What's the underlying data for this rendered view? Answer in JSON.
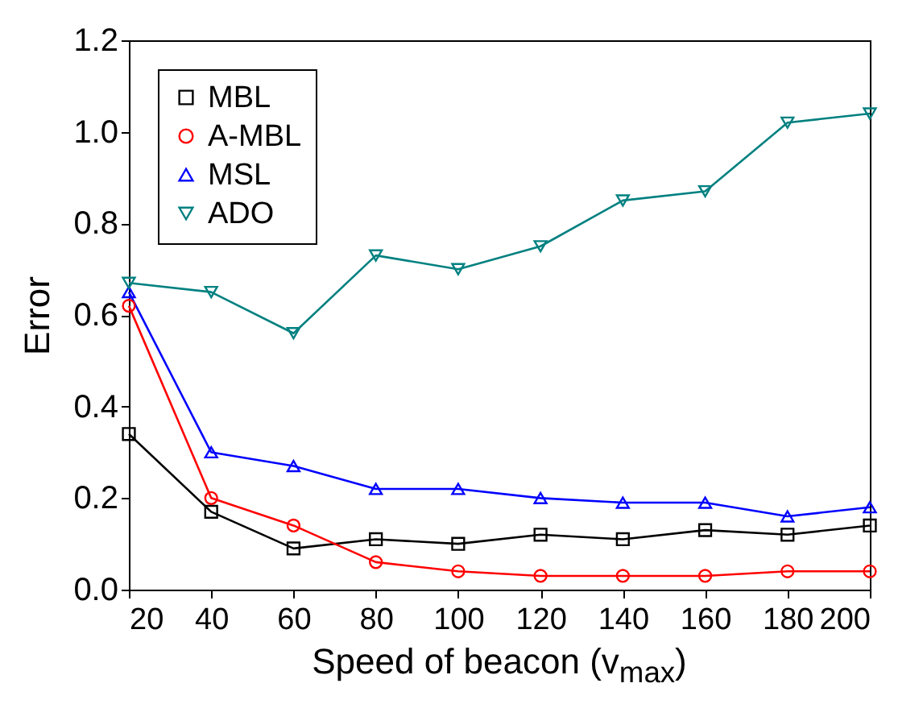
{
  "chart_data": {
    "type": "line",
    "xlabel": "Speed of beacon (v$_{max}$)",
    "ylabel": "Error",
    "x": [
      20,
      40,
      60,
      80,
      100,
      120,
      140,
      160,
      180,
      200
    ],
    "series": [
      {
        "name": "MBL",
        "color": "#000000",
        "marker": "square",
        "values": [
          0.34,
          0.17,
          0.09,
          0.11,
          0.1,
          0.12,
          0.11,
          0.13,
          0.12,
          0.14
        ]
      },
      {
        "name": "A-MBL",
        "color": "#ff0000",
        "marker": "circle",
        "values": [
          0.62,
          0.2,
          0.14,
          0.06,
          0.04,
          0.03,
          0.03,
          0.03,
          0.04,
          0.04
        ]
      },
      {
        "name": "MSL",
        "color": "#0000ff",
        "marker": "triangle",
        "values": [
          0.65,
          0.3,
          0.27,
          0.22,
          0.22,
          0.2,
          0.19,
          0.19,
          0.16,
          0.18
        ]
      },
      {
        "name": "ADO",
        "color": "#008080",
        "marker": "triangle-down",
        "values": [
          0.67,
          0.65,
          0.56,
          0.73,
          0.7,
          0.75,
          0.85,
          0.87,
          1.02,
          1.04
        ]
      }
    ],
    "xlim": [
      20,
      200
    ],
    "xticks": [
      20,
      40,
      60,
      80,
      100,
      120,
      140,
      160,
      180,
      200
    ],
    "ylim": [
      0,
      1.2
    ],
    "yticks": [
      {
        "value": 0,
        "label": "0.0"
      },
      0.2,
      0.4,
      0.6,
      0.8,
      {
        "value": 1,
        "label": "1.0"
      },
      1.2
    ],
    "grid": false,
    "legend": "top left",
    "line_style": "solid"
  }
}
